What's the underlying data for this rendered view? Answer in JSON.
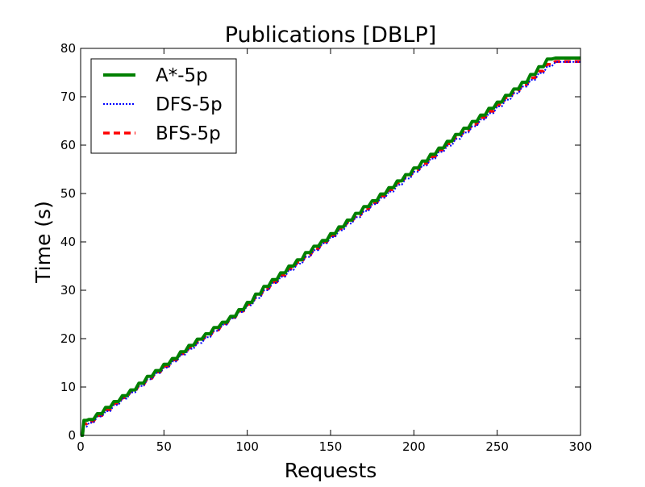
{
  "chart_data": {
    "type": "line",
    "title": "Publications [DBLP]",
    "xlabel": "Requests",
    "ylabel": "Time (s)",
    "xlim": [
      0,
      300
    ],
    "ylim": [
      0,
      80
    ],
    "xticks": [
      0,
      50,
      100,
      150,
      200,
      250,
      300
    ],
    "yticks": [
      0,
      10,
      20,
      30,
      40,
      50,
      60,
      70,
      80
    ],
    "grid": false,
    "legend_position": "top-left",
    "step": 5,
    "series": [
      {
        "name": "A*-5p",
        "color": "#008000",
        "line_style": "solid",
        "x": [
          0,
          2,
          5,
          10,
          15,
          20,
          25,
          30,
          35,
          40,
          45,
          50,
          55,
          60,
          65,
          70,
          75,
          80,
          85,
          90,
          95,
          100,
          105,
          110,
          115,
          120,
          125,
          130,
          135,
          140,
          145,
          150,
          155,
          160,
          165,
          170,
          175,
          180,
          185,
          190,
          195,
          200,
          205,
          210,
          215,
          220,
          225,
          230,
          235,
          240,
          245,
          250,
          255,
          260,
          265,
          270,
          275,
          280,
          285,
          290,
          295,
          300
        ],
        "y": [
          0,
          3.1,
          3.3,
          4.5,
          5.8,
          7.0,
          8.2,
          9.4,
          10.8,
          12.2,
          13.4,
          14.7,
          15.9,
          17.3,
          18.6,
          19.9,
          21.0,
          22.3,
          23.4,
          24.6,
          26.0,
          27.5,
          29.2,
          30.8,
          32.2,
          33.6,
          35.0,
          36.3,
          37.8,
          39.1,
          40.3,
          41.7,
          43.1,
          44.5,
          45.9,
          47.3,
          48.5,
          49.9,
          51.2,
          52.6,
          53.9,
          55.3,
          56.7,
          58.1,
          59.4,
          60.8,
          62.2,
          63.5,
          64.9,
          66.2,
          67.6,
          68.9,
          70.3,
          71.6,
          73.0,
          74.6,
          76.2,
          77.8,
          78.0,
          78.0,
          78.0,
          78.0
        ]
      },
      {
        "name": "DFS-5p",
        "color": "#0000ff",
        "line_style": "dotted",
        "x": [
          0,
          2,
          5,
          10,
          15,
          20,
          25,
          30,
          35,
          40,
          45,
          50,
          55,
          60,
          65,
          70,
          75,
          80,
          85,
          90,
          95,
          100,
          105,
          110,
          115,
          120,
          125,
          130,
          135,
          140,
          145,
          150,
          155,
          160,
          165,
          170,
          175,
          180,
          185,
          190,
          195,
          200,
          205,
          210,
          215,
          220,
          225,
          230,
          235,
          240,
          245,
          250,
          255,
          260,
          265,
          270,
          275,
          280,
          285,
          290,
          295,
          300
        ],
        "y": [
          0,
          1.8,
          2.6,
          3.9,
          5.0,
          6.3,
          7.6,
          8.9,
          10.2,
          11.6,
          12.9,
          14.0,
          15.3,
          16.7,
          17.9,
          19.1,
          20.3,
          21.6,
          22.9,
          24.2,
          25.5,
          26.9,
          28.4,
          30.0,
          31.5,
          32.8,
          34.2,
          35.5,
          36.9,
          38.3,
          39.7,
          41.0,
          42.4,
          43.8,
          45.1,
          46.4,
          47.8,
          49.1,
          50.4,
          51.8,
          53.1,
          54.5,
          55.8,
          57.2,
          58.6,
          59.9,
          61.3,
          62.6,
          63.9,
          65.3,
          66.6,
          68.0,
          69.4,
          70.7,
          72.1,
          73.5,
          74.9,
          76.3,
          77.2,
          77.2,
          77.2,
          77.2
        ]
      },
      {
        "name": "BFS-5p",
        "color": "#ff0000",
        "line_style": "dashed",
        "x": [
          0,
          2,
          5,
          10,
          15,
          20,
          25,
          30,
          35,
          40,
          45,
          50,
          55,
          60,
          65,
          70,
          75,
          80,
          85,
          90,
          95,
          100,
          105,
          110,
          115,
          120,
          125,
          130,
          135,
          140,
          145,
          150,
          155,
          160,
          165,
          170,
          175,
          180,
          185,
          190,
          195,
          200,
          205,
          210,
          215,
          220,
          225,
          230,
          235,
          240,
          245,
          250,
          255,
          260,
          265,
          270,
          275,
          280,
          285,
          290,
          295,
          300
        ],
        "y": [
          0,
          2.4,
          2.9,
          4.1,
          5.3,
          6.6,
          7.8,
          9.1,
          10.4,
          11.8,
          13.1,
          14.3,
          15.6,
          16.9,
          18.1,
          19.4,
          20.6,
          21.8,
          23.1,
          24.4,
          25.7,
          27.1,
          28.7,
          30.3,
          31.7,
          33.1,
          34.5,
          35.8,
          37.2,
          38.6,
          40.0,
          41.3,
          42.7,
          44.1,
          45.5,
          46.8,
          48.1,
          49.5,
          50.8,
          52.2,
          53.5,
          54.9,
          56.2,
          57.6,
          59.0,
          60.3,
          61.7,
          63.0,
          64.3,
          65.7,
          67.0,
          68.4,
          69.8,
          71.1,
          72.5,
          73.9,
          75.3,
          76.7,
          77.3,
          77.3,
          77.3,
          77.3
        ]
      }
    ]
  }
}
